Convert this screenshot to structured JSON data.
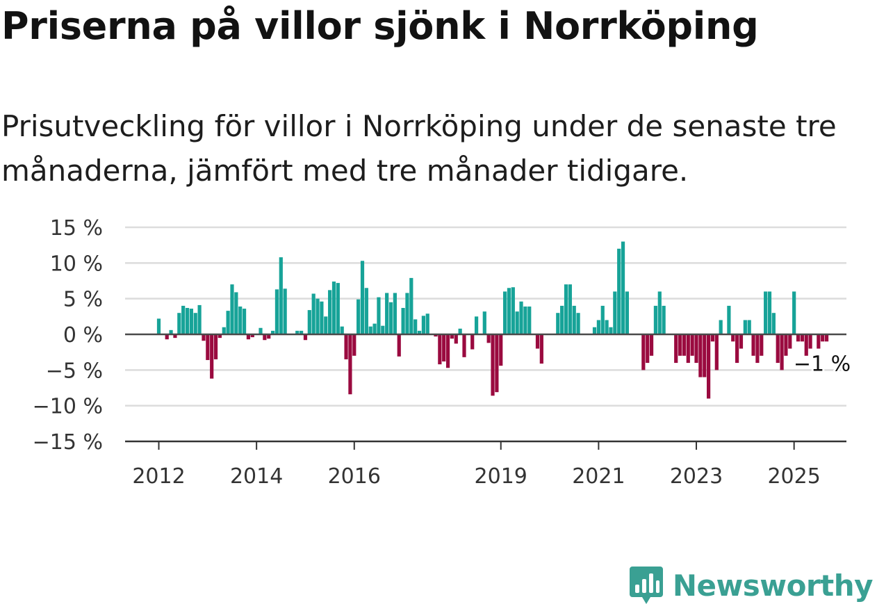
{
  "header": {
    "title": "Priserna på villor sjönk i Norrköping",
    "subtitle": "Prisutveckling för villor i Norrköping under de senaste tre månaderna, jämfört med tre månader tidigare."
  },
  "chart_data": {
    "type": "bar",
    "x_start": "2012-01",
    "x_step": "month",
    "values": [
      2.2,
      0,
      -0.7,
      0.6,
      -0.5,
      3.0,
      4.0,
      3.7,
      3.6,
      3.0,
      4.1,
      -0.9,
      -3.6,
      -6.2,
      -3.5,
      -0.5,
      1.0,
      3.3,
      7.0,
      5.9,
      3.9,
      3.6,
      -0.7,
      -0.4,
      0,
      0.9,
      -0.8,
      -0.6,
      0.5,
      6.3,
      10.8,
      6.4,
      0,
      0,
      0.5,
      0.5,
      -0.8,
      3.4,
      5.7,
      5.0,
      4.6,
      2.5,
      6.2,
      7.4,
      7.2,
      1.1,
      -3.5,
      -8.4,
      -3.0,
      4.9,
      10.3,
      6.5,
      1.1,
      1.5,
      5.2,
      1.2,
      5.8,
      4.5,
      5.8,
      -3.1,
      3.7,
      5.8,
      7.9,
      2.1,
      0.5,
      2.6,
      2.9,
      0,
      -0.3,
      -4.2,
      -3.8,
      -4.7,
      -0.6,
      -1.3,
      0.8,
      -3.2,
      0,
      -2.1,
      2.5,
      0,
      3.2,
      -1.2,
      -8.6,
      -8.1,
      -4.4,
      6.0,
      6.5,
      6.6,
      3.2,
      4.6,
      3.9,
      3.9,
      0,
      -2.0,
      -4.1,
      0,
      0,
      0,
      3.0,
      4.0,
      7.0,
      7.0,
      4.0,
      3.0,
      0,
      0,
      0,
      1.0,
      2.0,
      4.0,
      2.0,
      1.0,
      6.0,
      12.0,
      13.0,
      6.0,
      0,
      0,
      0,
      -5.0,
      -4.0,
      -3.0,
      4.0,
      6.0,
      4.0,
      0,
      0,
      -4.0,
      -3.0,
      -3.0,
      -4.0,
      -3.0,
      -4.0,
      -6.0,
      -6.0,
      -9.0,
      -1.0,
      -5.0,
      2.0,
      0,
      4.0,
      -1.0,
      -4.0,
      -2.0,
      2.0,
      2.0,
      -3.0,
      -4.0,
      -3.0,
      6.0,
      6.0,
      3.0,
      -4.0,
      -5.0,
      -3.0,
      -2.0,
      6.0,
      -1.0,
      -1.0,
      -3.0,
      -2.0,
      0,
      -2.0,
      -1.0,
      -1.0
    ],
    "x_ticks": [
      "2012",
      "2014",
      "2016",
      "2019",
      "2021",
      "2023",
      "2025"
    ],
    "y_ticks": [
      "15 %",
      "10 %",
      "5 %",
      "0 %",
      "−5 %",
      "−10 %",
      "−15 %"
    ],
    "ylim": [
      -15,
      15
    ],
    "colors": {
      "positive": "#17a398",
      "negative": "#9a0a3f"
    },
    "annotation": {
      "label": "−1 %",
      "x": "2025-07",
      "y": -1
    }
  },
  "brand": {
    "name": "Newsworthy",
    "color": "#3aa093"
  }
}
